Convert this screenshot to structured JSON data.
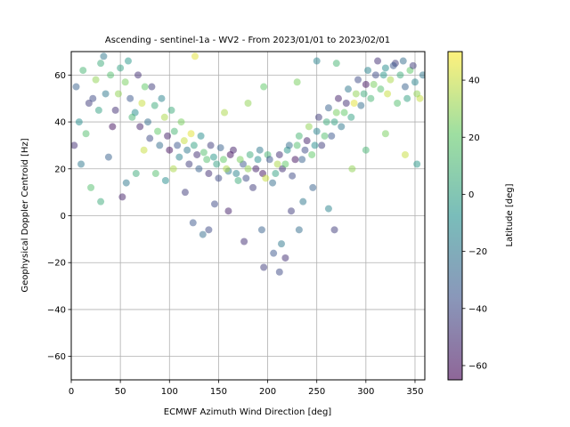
{
  "chart_data": {
    "type": "scatter",
    "title": "Ascending - sentinel-1a - WV2 - From 2023/01/01 to 2023/02/01",
    "xlabel": "ECMWF Azimuth Wind Direction [deg]",
    "ylabel": "Geophysical Doppler Centroid [Hz]",
    "xlim": [
      0,
      360
    ],
    "ylim": [
      -70,
      70
    ],
    "xticks": [
      0,
      50,
      100,
      150,
      200,
      250,
      300,
      350
    ],
    "yticks": [
      -60,
      -40,
      -20,
      0,
      20,
      40,
      60
    ],
    "grid": true,
    "point_opacity": 0.5,
    "colorbar": {
      "label": "Latitude [deg]",
      "colormap": "viridis",
      "range": [
        -65,
        50
      ],
      "ticks": [
        -60,
        -40,
        -20,
        0,
        20,
        40
      ]
    },
    "trend": {
      "description": "cosine-like Doppler vs wind direction",
      "peak_left": [
        20,
        58
      ],
      "trough": [
        190,
        22
      ],
      "peak_right": [
        340,
        58
      ]
    },
    "points": [
      [
        5,
        55,
        -30
      ],
      [
        12,
        62,
        10
      ],
      [
        18,
        48,
        -45
      ],
      [
        25,
        58,
        30
      ],
      [
        30,
        65,
        5
      ],
      [
        35,
        52,
        -20
      ],
      [
        40,
        60,
        15
      ],
      [
        45,
        45,
        -50
      ],
      [
        50,
        63,
        0
      ],
      [
        55,
        57,
        25
      ],
      [
        60,
        50,
        -35
      ],
      [
        65,
        44,
        -10
      ],
      [
        70,
        38,
        -55
      ],
      [
        75,
        55,
        20
      ],
      [
        80,
        33,
        -40
      ],
      [
        85,
        47,
        5
      ],
      [
        90,
        30,
        -25
      ],
      [
        95,
        42,
        35
      ],
      [
        100,
        28,
        -60
      ],
      [
        105,
        36,
        10
      ],
      [
        110,
        25,
        -15
      ],
      [
        115,
        32,
        40
      ],
      [
        120,
        22,
        -45
      ],
      [
        125,
        30,
        0
      ],
      [
        130,
        20,
        -30
      ],
      [
        135,
        27,
        15
      ],
      [
        140,
        18,
        -50
      ],
      [
        145,
        25,
        -5
      ],
      [
        150,
        16,
        -40
      ],
      [
        155,
        24,
        20
      ],
      [
        160,
        19,
        -20
      ],
      [
        165,
        28,
        -55
      ],
      [
        170,
        15,
        5
      ],
      [
        175,
        22,
        -35
      ],
      [
        180,
        20,
        30
      ],
      [
        185,
        12,
        -45
      ],
      [
        190,
        24,
        -10
      ],
      [
        195,
        18,
        -60
      ],
      [
        200,
        26,
        10
      ],
      [
        205,
        14,
        -25
      ],
      [
        210,
        22,
        35
      ],
      [
        215,
        20,
        -50
      ],
      [
        220,
        28,
        -5
      ],
      [
        225,
        17,
        -40
      ],
      [
        230,
        30,
        15
      ],
      [
        235,
        24,
        -30
      ],
      [
        240,
        32,
        -55
      ],
      [
        245,
        26,
        20
      ],
      [
        250,
        36,
        -15
      ],
      [
        255,
        30,
        -45
      ],
      [
        260,
        40,
        5
      ],
      [
        265,
        34,
        -35
      ],
      [
        270,
        44,
        25
      ],
      [
        275,
        38,
        -20
      ],
      [
        280,
        48,
        -50
      ],
      [
        285,
        42,
        0
      ],
      [
        290,
        52,
        30
      ],
      [
        295,
        47,
        -25
      ],
      [
        300,
        56,
        -60
      ],
      [
        305,
        50,
        10
      ],
      [
        310,
        60,
        -40
      ],
      [
        315,
        54,
        15
      ],
      [
        320,
        63,
        -10
      ],
      [
        325,
        58,
        35
      ],
      [
        330,
        65,
        -45
      ],
      [
        335,
        60,
        5
      ],
      [
        340,
        55,
        -30
      ],
      [
        345,
        62,
        20
      ],
      [
        350,
        57,
        -15
      ],
      [
        355,
        50,
        40
      ],
      [
        8,
        40,
        -10
      ],
      [
        15,
        35,
        15
      ],
      [
        22,
        50,
        -40
      ],
      [
        28,
        45,
        0
      ],
      [
        33,
        68,
        -20
      ],
      [
        42,
        38,
        -60
      ],
      [
        48,
        52,
        30
      ],
      [
        58,
        66,
        -5
      ],
      [
        62,
        42,
        10
      ],
      [
        68,
        60,
        -50
      ],
      [
        72,
        48,
        40
      ],
      [
        78,
        40,
        -25
      ],
      [
        82,
        55,
        -45
      ],
      [
        88,
        36,
        20
      ],
      [
        92,
        50,
        -15
      ],
      [
        98,
        34,
        -55
      ],
      [
        102,
        45,
        5
      ],
      [
        108,
        30,
        -35
      ],
      [
        112,
        40,
        25
      ],
      [
        118,
        28,
        -20
      ],
      [
        122,
        35,
        45
      ],
      [
        128,
        26,
        -50
      ],
      [
        132,
        34,
        -10
      ],
      [
        138,
        24,
        15
      ],
      [
        142,
        30,
        -45
      ],
      [
        148,
        22,
        0
      ],
      [
        152,
        29,
        -30
      ],
      [
        158,
        20,
        35
      ],
      [
        162,
        26,
        -60
      ],
      [
        168,
        18,
        -15
      ],
      [
        172,
        24,
        25
      ],
      [
        178,
        16,
        -40
      ],
      [
        182,
        26,
        5
      ],
      [
        188,
        20,
        -55
      ],
      [
        192,
        28,
        -20
      ],
      [
        198,
        16,
        40
      ],
      [
        202,
        24,
        -35
      ],
      [
        208,
        18,
        0
      ],
      [
        212,
        26,
        -50
      ],
      [
        218,
        22,
        20
      ],
      [
        222,
        30,
        -25
      ],
      [
        228,
        24,
        -60
      ],
      [
        232,
        34,
        10
      ],
      [
        238,
        28,
        -40
      ],
      [
        242,
        38,
        30
      ],
      [
        248,
        30,
        -10
      ],
      [
        252,
        42,
        -45
      ],
      [
        258,
        34,
        15
      ],
      [
        262,
        46,
        -30
      ],
      [
        268,
        40,
        0
      ],
      [
        272,
        50,
        -55
      ],
      [
        278,
        44,
        20
      ],
      [
        282,
        54,
        -20
      ],
      [
        288,
        48,
        45
      ],
      [
        292,
        58,
        -40
      ],
      [
        298,
        52,
        5
      ],
      [
        302,
        62,
        -15
      ],
      [
        308,
        56,
        25
      ],
      [
        312,
        66,
        -50
      ],
      [
        318,
        60,
        -5
      ],
      [
        322,
        52,
        40
      ],
      [
        328,
        64,
        -35
      ],
      [
        332,
        48,
        15
      ],
      [
        338,
        66,
        -25
      ],
      [
        342,
        50,
        0
      ],
      [
        348,
        64,
        -45
      ],
      [
        352,
        52,
        30
      ],
      [
        358,
        60,
        -20
      ],
      [
        3,
        30,
        -50
      ],
      [
        10,
        22,
        -20
      ],
      [
        20,
        12,
        15
      ],
      [
        38,
        25,
        -30
      ],
      [
        52,
        8,
        -55
      ],
      [
        66,
        18,
        5
      ],
      [
        74,
        28,
        40
      ],
      [
        96,
        15,
        -10
      ],
      [
        116,
        10,
        -45
      ],
      [
        124,
        -3,
        -35
      ],
      [
        134,
        -8,
        -25
      ],
      [
        140,
        -6,
        -40
      ],
      [
        176,
        -11,
        -50
      ],
      [
        194,
        -6,
        -30
      ],
      [
        196,
        -22,
        -45
      ],
      [
        206,
        -16,
        -35
      ],
      [
        212,
        -24,
        -40
      ],
      [
        214,
        -12,
        -20
      ],
      [
        218,
        -18,
        -50
      ],
      [
        232,
        -6,
        -25
      ],
      [
        262,
        3,
        -15
      ],
      [
        268,
        -6,
        -45
      ],
      [
        286,
        20,
        30
      ],
      [
        300,
        28,
        10
      ],
      [
        320,
        35,
        25
      ],
      [
        340,
        26,
        40
      ],
      [
        352,
        22,
        -5
      ],
      [
        126,
        68,
        45
      ],
      [
        230,
        57,
        25
      ],
      [
        250,
        66,
        -15
      ],
      [
        270,
        65,
        10
      ],
      [
        156,
        44,
        35
      ],
      [
        180,
        48,
        30
      ],
      [
        196,
        55,
        20
      ],
      [
        86,
        18,
        15
      ],
      [
        146,
        5,
        -40
      ],
      [
        160,
        2,
        -55
      ],
      [
        236,
        6,
        -20
      ],
      [
        246,
        12,
        -30
      ],
      [
        224,
        2,
        -45
      ],
      [
        104,
        20,
        35
      ],
      [
        56,
        14,
        -20
      ],
      [
        30,
        6,
        5
      ]
    ]
  }
}
